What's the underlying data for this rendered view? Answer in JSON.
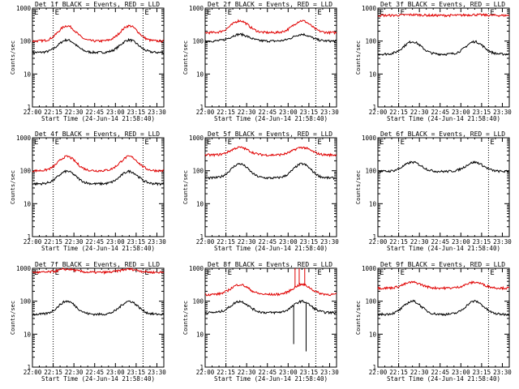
{
  "figure": {
    "ylabel": "Counts/sec",
    "xlabel": "Start Time (24-Jun-14 21:58:40)",
    "marker_label": "E",
    "colors": {
      "events": "#000000",
      "lld": "#e00000",
      "axes": "#000000",
      "background": "#ffffff"
    }
  },
  "chart_data": [
    {
      "type": "line",
      "title": "Det 1f BLACK = Events, RED = LLD",
      "ylim": [
        1,
        1000
      ],
      "xrange": [
        0,
        95
      ],
      "x_ticks": [
        "22:00",
        "22:15",
        "22:30",
        "22:45",
        "23:00",
        "23:15",
        "23:30"
      ],
      "y_ticks": [
        "1",
        "10",
        "100",
        "1000"
      ],
      "marker_times": [
        15,
        80
      ],
      "series": [
        {
          "name": "Events",
          "color": "#000000",
          "base": 45,
          "amp": 2.4,
          "peaks": [
            25,
            70
          ]
        },
        {
          "name": "LLD",
          "color": "#e00000",
          "base": 100,
          "amp": 2.9,
          "peaks": [
            25,
            70
          ]
        }
      ]
    },
    {
      "type": "line",
      "title": "Det 2f BLACK = Events, RED = LLD",
      "ylim": [
        1,
        1000
      ],
      "xrange": [
        0,
        95
      ],
      "x_ticks": [
        "22:00",
        "22:15",
        "22:30",
        "22:45",
        "23:00",
        "23:15",
        "23:30"
      ],
      "y_ticks": [
        "1",
        "10",
        "100",
        "1000"
      ],
      "marker_times": [
        15,
        80
      ],
      "series": [
        {
          "name": "Events",
          "color": "#000000",
          "base": 100,
          "amp": 1.6,
          "peaks": [
            25,
            70
          ]
        },
        {
          "name": "LLD",
          "color": "#e00000",
          "base": 180,
          "amp": 2.3,
          "peaks": [
            25,
            70
          ]
        }
      ]
    },
    {
      "type": "line",
      "title": "Det 3f BLACK = Events, RED = LLD",
      "ylim": [
        1,
        1000
      ],
      "xrange": [
        0,
        95
      ],
      "x_ticks": [
        "22:00",
        "22:15",
        "22:30",
        "22:45",
        "23:00",
        "23:15",
        "23:30"
      ],
      "y_ticks": [
        "1",
        "10",
        "100",
        "1000"
      ],
      "marker_times": [
        15,
        80
      ],
      "series": [
        {
          "name": "Events",
          "color": "#000000",
          "base": 40,
          "amp": 2.4,
          "peaks": [
            25,
            70
          ]
        },
        {
          "name": "LLD",
          "color": "#e00000",
          "base": 600,
          "amp": 1.05,
          "peaks": [
            25,
            70
          ]
        }
      ]
    },
    {
      "type": "line",
      "title": "Det 4f BLACK = Events, RED = LLD",
      "ylim": [
        1,
        1000
      ],
      "xrange": [
        0,
        95
      ],
      "x_ticks": [
        "22:00",
        "22:15",
        "22:30",
        "22:45",
        "23:00",
        "23:15",
        "23:30"
      ],
      "y_ticks": [
        "1",
        "10",
        "100",
        "1000"
      ],
      "marker_times": [
        15,
        80
      ],
      "series": [
        {
          "name": "Events",
          "color": "#000000",
          "base": 40,
          "amp": 2.4,
          "peaks": [
            25,
            70
          ]
        },
        {
          "name": "LLD",
          "color": "#e00000",
          "base": 100,
          "amp": 2.7,
          "peaks": [
            25,
            70
          ]
        }
      ]
    },
    {
      "type": "line",
      "title": "Det 5f BLACK = Events, RED = LLD",
      "ylim": [
        1,
        1000
      ],
      "xrange": [
        0,
        95
      ],
      "x_ticks": [
        "22:00",
        "22:15",
        "22:30",
        "22:45",
        "23:00",
        "23:15",
        "23:30"
      ],
      "y_ticks": [
        "1",
        "10",
        "100",
        "1000"
      ],
      "marker_times": [
        15,
        80
      ],
      "series": [
        {
          "name": "Events",
          "color": "#000000",
          "base": 60,
          "amp": 2.7,
          "peaks": [
            25,
            70
          ]
        },
        {
          "name": "LLD",
          "color": "#e00000",
          "base": 300,
          "amp": 1.7,
          "peaks": [
            25,
            70
          ]
        }
      ]
    },
    {
      "type": "line",
      "title": "Det 6f BLACK = Events, RED = LLD",
      "ylim": [
        1,
        1000
      ],
      "xrange": [
        0,
        95
      ],
      "x_ticks": [
        "22:00",
        "22:15",
        "22:30",
        "22:45",
        "23:00",
        "23:15",
        "23:30"
      ],
      "y_ticks": [
        "1",
        "10",
        "100",
        "1000"
      ],
      "marker_times": [
        15,
        80
      ],
      "series": [
        {
          "name": "Events",
          "color": "#000000",
          "base": 95,
          "amp": 1.9,
          "peaks": [
            25,
            70
          ]
        }
      ]
    },
    {
      "type": "line",
      "title": "Det 7f BLACK = Events, RED = LLD",
      "ylim": [
        1,
        1000
      ],
      "xrange": [
        0,
        95
      ],
      "x_ticks": [
        "22:00",
        "22:15",
        "22:30",
        "22:45",
        "23:00",
        "23:15",
        "23:30"
      ],
      "y_ticks": [
        "1",
        "10",
        "100",
        "1000"
      ],
      "marker_times": [
        15,
        80
      ],
      "series": [
        {
          "name": "Events",
          "color": "#000000",
          "base": 40,
          "amp": 2.5,
          "peaks": [
            25,
            70
          ]
        },
        {
          "name": "LLD",
          "color": "#e00000",
          "base": 750,
          "amp": 1.25,
          "peaks": [
            25,
            70
          ]
        }
      ]
    },
    {
      "type": "line",
      "title": "Det 8f BLACK = Events, RED = LLD",
      "ylim": [
        1,
        1000
      ],
      "xrange": [
        0,
        95
      ],
      "x_ticks": [
        "22:00",
        "22:15",
        "22:30",
        "22:45",
        "23:00",
        "23:15",
        "23:30"
      ],
      "y_ticks": [
        "1",
        "10",
        "100",
        "1000"
      ],
      "marker_times": [
        15,
        80
      ],
      "series": [
        {
          "name": "Events",
          "color": "#000000",
          "base": 45,
          "amp": 2.2,
          "peaks": [
            25,
            70
          ],
          "spikes": [
            {
              "t": 64,
              "v": 5
            },
            {
              "t": 73,
              "v": 3
            }
          ]
        },
        {
          "name": "LLD",
          "color": "#e00000",
          "base": 160,
          "amp": 2.0,
          "peaks": [
            25,
            70
          ],
          "spikes": [
            {
              "t": 65,
              "v": 1000
            },
            {
              "t": 68,
              "v": 1000
            },
            {
              "t": 72,
              "v": 1000
            }
          ]
        }
      ]
    },
    {
      "type": "line",
      "title": "Det 9f BLACK = Events, RED = LLD",
      "ylim": [
        1,
        1000
      ],
      "xrange": [
        0,
        95
      ],
      "x_ticks": [
        "22:00",
        "22:15",
        "22:30",
        "22:45",
        "23:00",
        "23:15",
        "23:30"
      ],
      "y_ticks": [
        "1",
        "10",
        "100",
        "1000"
      ],
      "marker_times": [
        15,
        80
      ],
      "series": [
        {
          "name": "Events",
          "color": "#000000",
          "base": 40,
          "amp": 2.5,
          "peaks": [
            25,
            70
          ]
        },
        {
          "name": "LLD",
          "color": "#e00000",
          "base": 250,
          "amp": 1.5,
          "peaks": [
            25,
            70
          ]
        }
      ]
    }
  ]
}
